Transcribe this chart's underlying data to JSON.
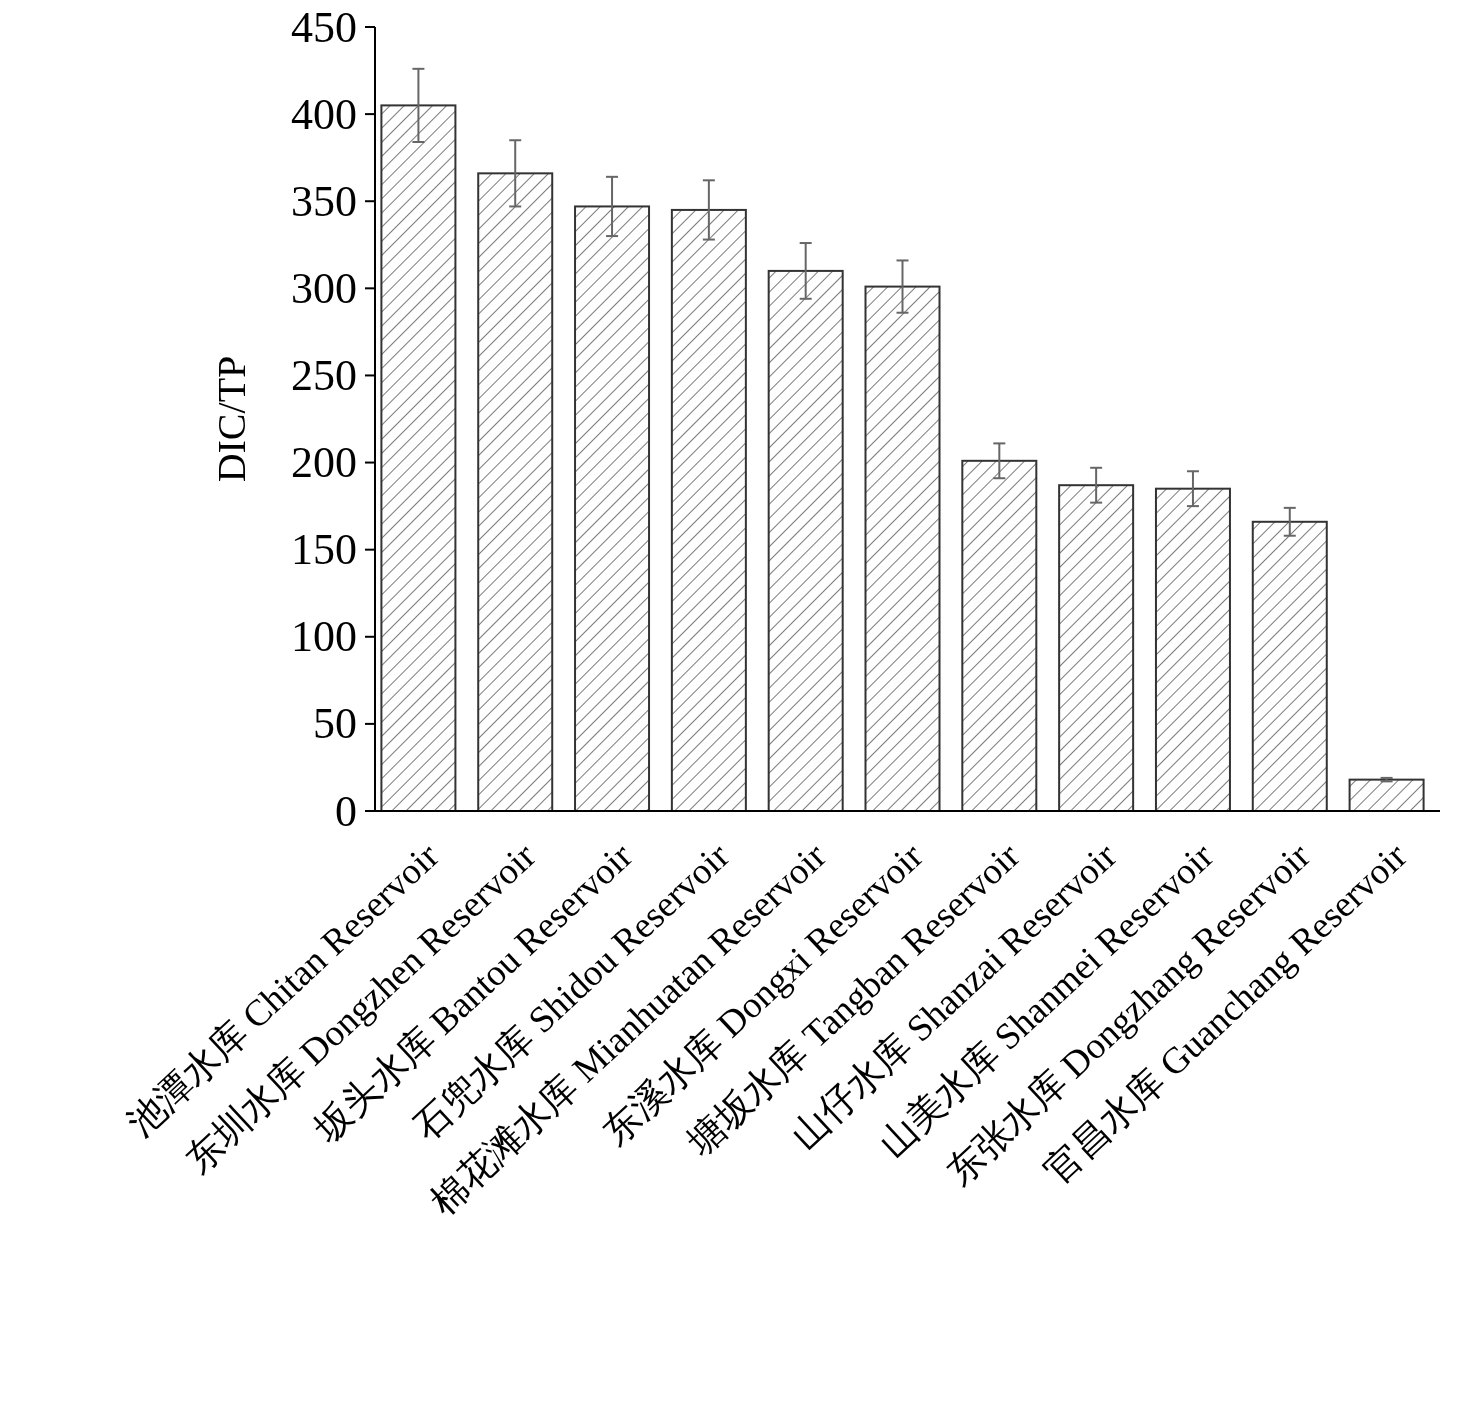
{
  "chart_data": {
    "type": "bar",
    "ylabel": "DIC/TP",
    "categories": [
      "池潭水库 Chitan Reservoir",
      "东圳水库 Dongzhen Reservoir",
      "坂头水库 Bantou Reservoir",
      "石兜水库 Shidou Reservoir",
      "棉花滩水库 Mianhuatan Reservoir",
      "东溪水库 Dongxi Reservoir",
      "塘坂水库 Tangban Reservoir",
      "山仔水库 Shanzai Reservoir",
      "山美水库 Shanmei Reservoir",
      "东张水库 Dongzhang Reservoir",
      "官昌水库 Guanchang Reservoir"
    ],
    "values": [
      405,
      366,
      347,
      345,
      310,
      301,
      201,
      187,
      185,
      166,
      18
    ],
    "errors": [
      21,
      19,
      17,
      17,
      16,
      15,
      10,
      10,
      10,
      8,
      1
    ],
    "color": "#333333",
    "ylim": [
      0,
      450
    ],
    "yticks": [
      0,
      50,
      100,
      150,
      200,
      250,
      300,
      350,
      400,
      450
    ]
  }
}
